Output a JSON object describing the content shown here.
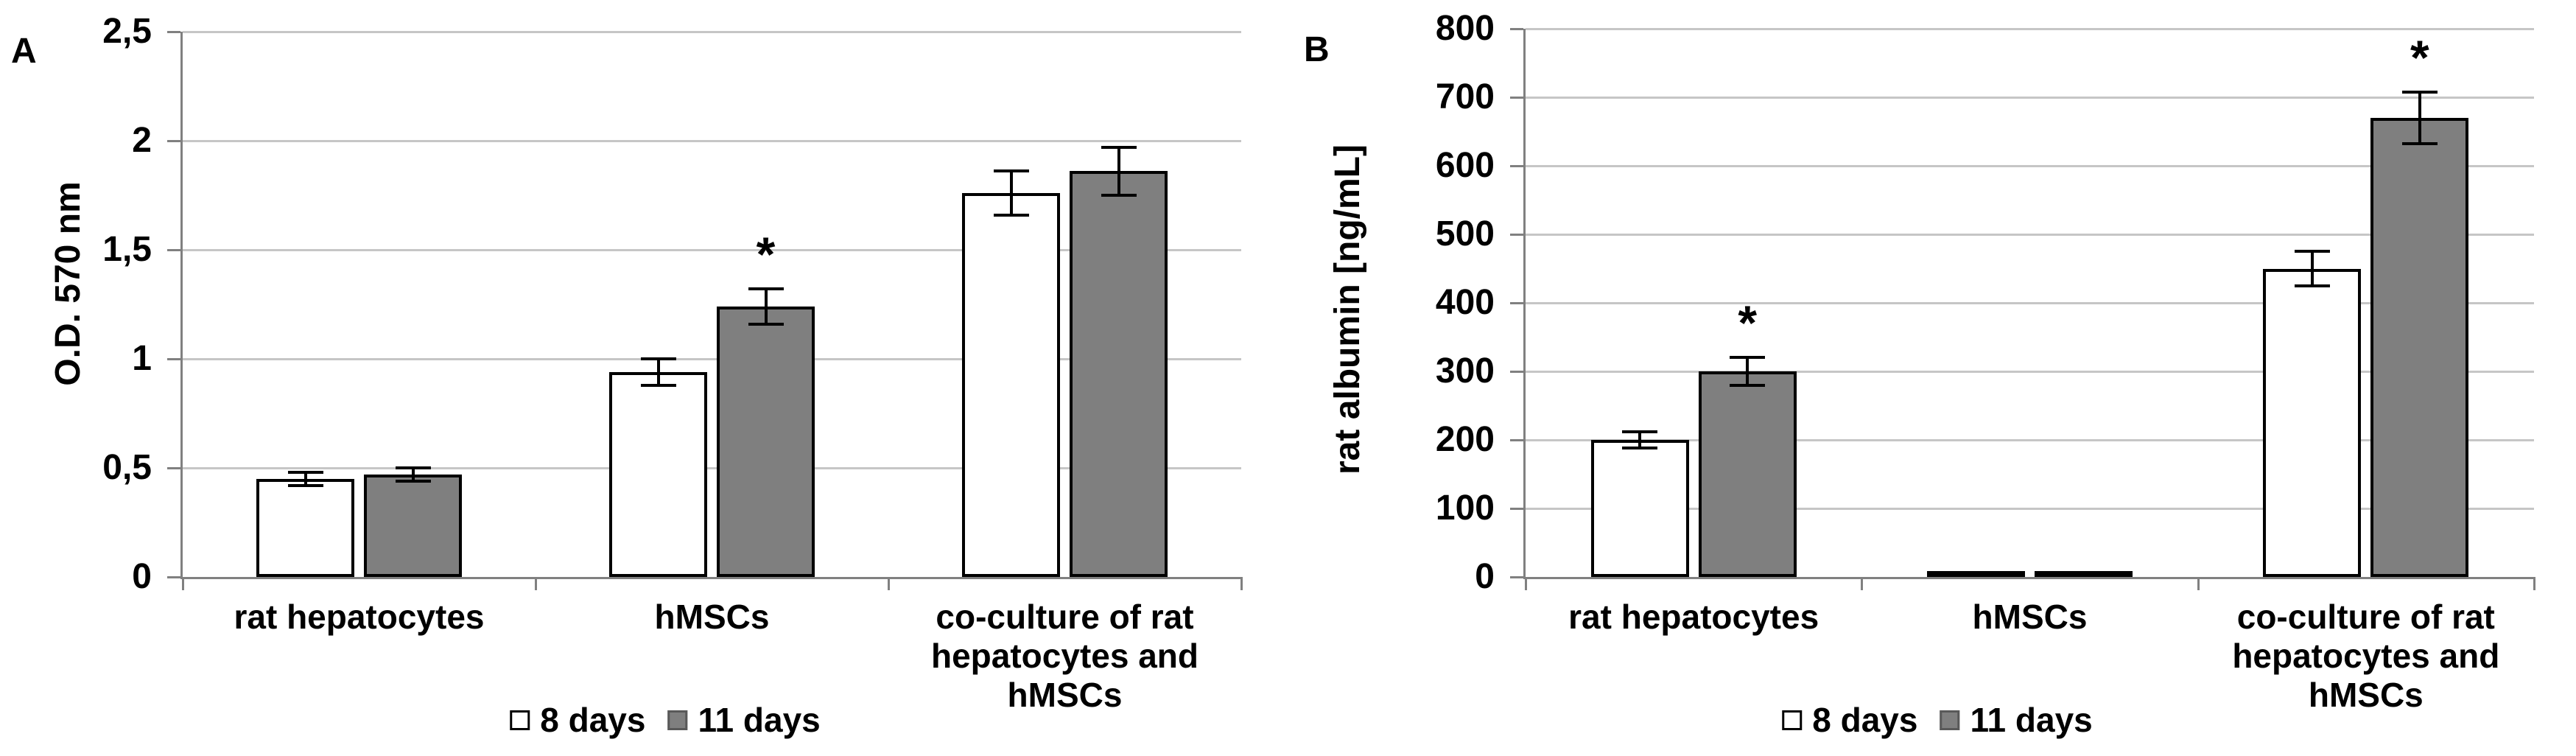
{
  "chart_data": [
    {
      "type": "bar",
      "panel_label": "A",
      "ylabel": "O.D. 570 nm",
      "ylim": [
        0,
        2.5
      ],
      "ytick_step": 0.5,
      "ytick_labels": [
        "0",
        "0,5",
        "1",
        "1,5",
        "2",
        "2,5"
      ],
      "categories": [
        "rat hepatocytes",
        "hMSCs",
        "co-culture of rat hepatocytes and hMSCs"
      ],
      "series": [
        {
          "name": "8 days",
          "fill": "#ffffff",
          "values": [
            0.45,
            0.94,
            1.76
          ],
          "errors": [
            0.03,
            0.06,
            0.1
          ]
        },
        {
          "name": "11 days",
          "fill": "#7f7f7f",
          "values": [
            0.47,
            1.24,
            1.86
          ],
          "errors": [
            0.03,
            0.08,
            0.11
          ]
        }
      ],
      "sig_markers": [
        {
          "category_index": 1,
          "series_index": 1,
          "symbol": "*"
        }
      ],
      "legend": [
        "8 days",
        "11 days"
      ],
      "legend_position": "bottom",
      "grid": true
    },
    {
      "type": "bar",
      "panel_label": "B",
      "ylabel": "rat albumin [ng/mL]",
      "ylim": [
        0,
        800
      ],
      "ytick_step": 100,
      "ytick_labels": [
        "0",
        "100",
        "200",
        "300",
        "400",
        "500",
        "600",
        "700",
        "800"
      ],
      "categories": [
        "rat hepatocytes",
        "hMSCs",
        "co-culture of rat hepatocytes and hMSCs"
      ],
      "series": [
        {
          "name": "8 days",
          "fill": "#ffffff",
          "values": [
            200,
            2,
            450
          ],
          "errors": [
            12,
            0,
            25
          ]
        },
        {
          "name": "11 days",
          "fill": "#7f7f7f",
          "values": [
            300,
            2,
            670
          ],
          "errors": [
            20,
            0,
            38
          ]
        }
      ],
      "sig_markers": [
        {
          "category_index": 0,
          "series_index": 1,
          "symbol": "*"
        },
        {
          "category_index": 2,
          "series_index": 1,
          "symbol": "*"
        }
      ],
      "legend": [
        "8 days",
        "11 days"
      ],
      "legend_position": "bottom",
      "grid": true
    }
  ],
  "colors": {
    "series_8_days_fill": "#ffffff",
    "series_11_days_fill": "#7f7f7f",
    "gridline": "#c6c6c6",
    "axis": "#808080",
    "text": "#000000"
  }
}
